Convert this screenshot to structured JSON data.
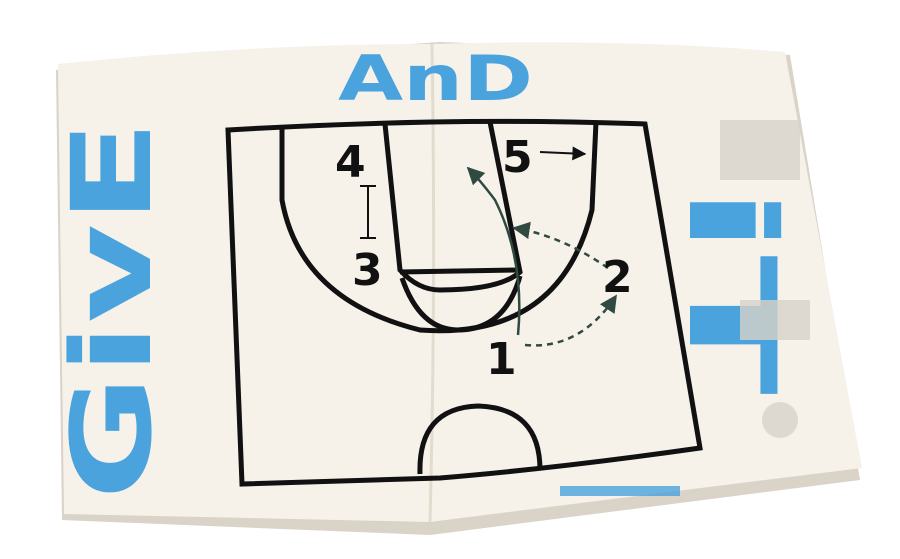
{
  "title_letters": {
    "top": "AnD",
    "left": "GivE",
    "right": "iT"
  },
  "players": [
    {
      "id": "p1",
      "label": "1"
    },
    {
      "id": "p2",
      "label": "2"
    },
    {
      "id": "p3",
      "label": "3"
    },
    {
      "id": "p4",
      "label": "4"
    },
    {
      "id": "p5",
      "label": "5"
    }
  ],
  "colors": {
    "paper": "#f6f2ea",
    "ink": "#111111",
    "accent_blue": "#4aa3dc",
    "arrow_green": "#2f4a40"
  }
}
